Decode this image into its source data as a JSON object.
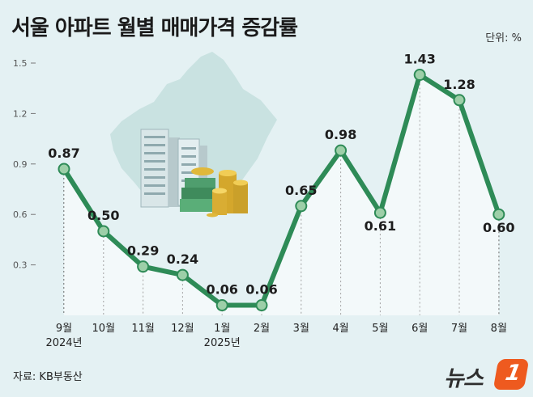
{
  "header": {
    "title": "서울 아파트 월별 매매가격 증감률",
    "unit": "단위: %"
  },
  "footer": {
    "source": "자료: KB부동산",
    "logo_text": "뉴스",
    "logo_mark": "1"
  },
  "chart_data": {
    "type": "line",
    "title": "서울 아파트 월별 매매가격 증감률",
    "xlabel": "",
    "ylabel": "",
    "ylim": [
      0,
      1.5
    ],
    "yticks": [
      "0.3",
      "0.6",
      "0.9",
      "1.2",
      "1.5"
    ],
    "categories": [
      "9월",
      "10월",
      "11월",
      "12월",
      "1월",
      "2월",
      "3월",
      "4월",
      "5월",
      "6월",
      "7월",
      "8월"
    ],
    "year_labels": {
      "0": "2024년",
      "4": "2025년"
    },
    "values": [
      0.87,
      0.5,
      0.29,
      0.24,
      0.06,
      0.06,
      0.65,
      0.98,
      0.61,
      1.43,
      1.28,
      0.6
    ],
    "value_labels": [
      "0.87",
      "0.50",
      "0.29",
      "0.24",
      "0.06",
      "0.06",
      "0.65",
      "0.98",
      "0.61",
      "1.43",
      "1.28",
      "0.60"
    ],
    "line_color": "#2e8b57",
    "marker_color": "#9dcfa8"
  },
  "illustration": {
    "description_icon": "seoul-map-apartments-coins-icon"
  }
}
